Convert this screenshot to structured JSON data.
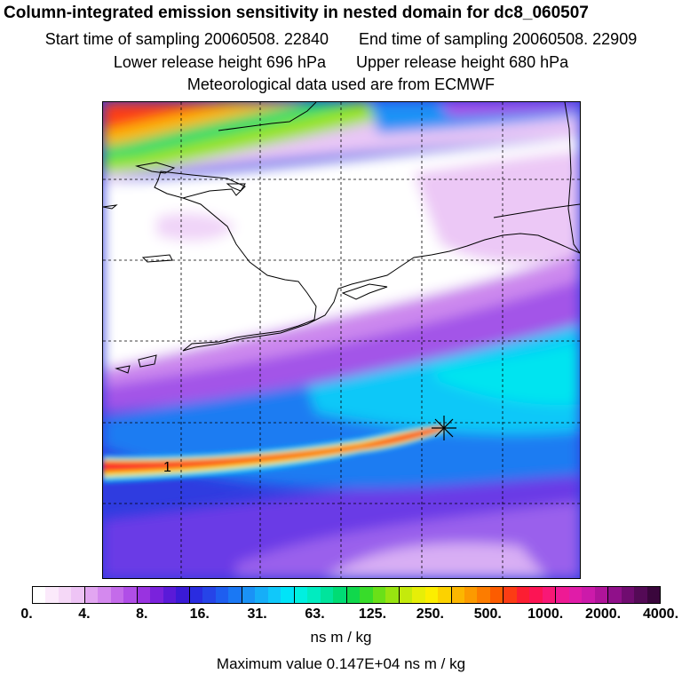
{
  "header": {
    "title": "Column-integrated emission sensitivity in nested domain for dc8_060507",
    "start_label": "Start time of sampling 20060508. 22840",
    "end_label": "End time of sampling 20060508. 22909",
    "lower_label": "Lower release height  696 hPa",
    "upper_label": "Upper release height  680 hPa",
    "met_label": "Meteorological data used are from ECMWF"
  },
  "map": {
    "marker_label": "1"
  },
  "colorbar": {
    "ticks": [
      "0.",
      "4.",
      "8.",
      "16.",
      "31.",
      "63.",
      "125.",
      "250.",
      "500.",
      "1000.",
      "2000.",
      "4000."
    ],
    "colors": [
      "#ffffff",
      "#fbeafb",
      "#f5d8f7",
      "#eec4f5",
      "#e2a6f1",
      "#d489ee",
      "#c46bea",
      "#b04ee7",
      "#9933e0",
      "#7a22dc",
      "#5a1ad8",
      "#3a1ad6",
      "#2a2ce0",
      "#2644e8",
      "#1e5ef0",
      "#1a78f4",
      "#1a92f6",
      "#16aef8",
      "#10c8fa",
      "#00e4f8",
      "#00f0e0",
      "#00ecc0",
      "#00e49c",
      "#00dc74",
      "#10d84c",
      "#38dc2a",
      "#6ae018",
      "#98e410",
      "#c4ea0c",
      "#e6ee08",
      "#fcee00",
      "#fcd200",
      "#fcb600",
      "#fc9a00",
      "#fc7c00",
      "#fc5c00",
      "#fc3c14",
      "#fc1e32",
      "#fc1454",
      "#f81876",
      "#ee1a94",
      "#e01ca8",
      "#cc1aaa",
      "#b0149a",
      "#90108a",
      "#700c70",
      "#540a56",
      "#3a063c"
    ],
    "unit": "ns m / kg",
    "max_value": "Maximum value  0.147E+04 ns m / kg"
  }
}
